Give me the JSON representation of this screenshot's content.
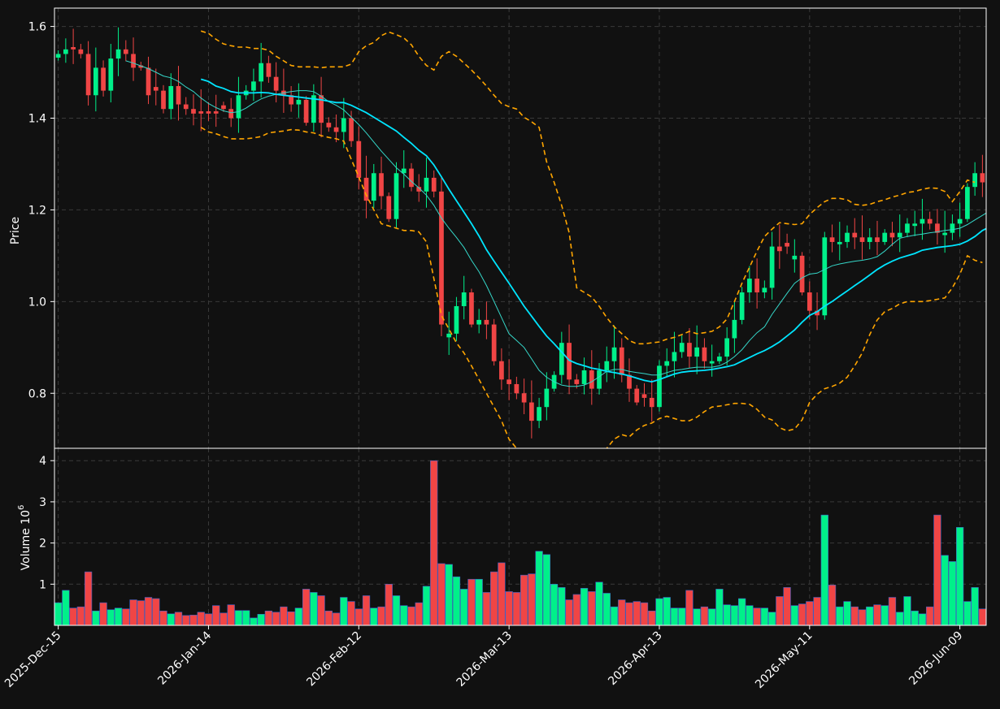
{
  "colors": {
    "background": "#111111",
    "up": "#00f08a",
    "down": "#f04545",
    "grid": "#3a3a3a",
    "axis": "#ffffff",
    "ma_slow": "#00e5ff",
    "ma_fast": "#35d6c8",
    "bands": "#ffa500"
  },
  "chart_data": {
    "type": "candlestick",
    "price_panel": {
      "ylabel": "Price",
      "ylim": [
        0.68,
        1.64
      ],
      "yticks": [
        0.8,
        1.0,
        1.2,
        1.4,
        1.6
      ],
      "ytick_labels": [
        "0.8",
        "1.0",
        "1.2",
        "1.4",
        "1.6"
      ],
      "grid": true
    },
    "volume_panel": {
      "ylabel": "Volume",
      "unit_label": "10",
      "unit_exponent": "6",
      "ylim": [
        0,
        4.3
      ],
      "yticks": [
        1,
        2,
        3,
        4
      ],
      "ytick_labels": [
        "1",
        "2",
        "3",
        "4"
      ],
      "grid": true
    },
    "x_tick_labels": [
      "2025-Dec-15",
      "2026-Jan-14",
      "2026-Feb-12",
      "2026-Mar-13",
      "2026-Apr-13",
      "2026-May-11",
      "2026-Jun-09"
    ],
    "x_tick_indices": [
      0,
      20,
      40,
      60,
      80,
      100,
      120
    ],
    "closes": [
      1.54,
      1.55,
      1.55,
      1.54,
      1.45,
      1.51,
      1.46,
      1.53,
      1.55,
      1.54,
      1.51,
      1.51,
      1.45,
      1.46,
      1.42,
      1.47,
      1.43,
      1.42,
      1.41,
      1.41,
      1.41,
      1.41,
      1.42,
      1.4,
      1.45,
      1.46,
      1.48,
      1.52,
      1.49,
      1.46,
      1.45,
      1.43,
      1.44,
      1.39,
      1.45,
      1.39,
      1.38,
      1.37,
      1.4,
      1.35,
      1.27,
      1.22,
      1.28,
      1.23,
      1.18,
      1.28,
      1.29,
      1.25,
      1.24,
      1.27,
      1.24,
      0.95,
      0.93,
      0.99,
      1.02,
      0.95,
      0.96,
      0.95,
      0.87,
      0.83,
      0.82,
      0.8,
      0.78,
      0.74,
      0.77,
      0.81,
      0.84,
      0.91,
      0.83,
      0.82,
      0.85,
      0.81,
      0.85,
      0.87,
      0.9,
      0.84,
      0.81,
      0.78,
      0.79,
      0.77,
      0.86,
      0.87,
      0.89,
      0.91,
      0.88,
      0.9,
      0.87,
      0.87,
      0.88,
      0.92,
      0.96,
      1.02,
      1.05,
      1.02,
      1.03,
      1.12,
      1.11,
      1.12,
      1.1,
      1.02,
      0.98,
      0.97,
      1.14,
      1.13,
      1.13,
      1.15,
      1.14,
      1.13,
      1.14,
      1.13,
      1.15,
      1.14,
      1.15,
      1.17,
      1.17,
      1.18,
      1.17,
      1.15,
      1.15,
      1.17,
      1.18,
      1.25,
      1.28,
      1.26
    ],
    "up_flags": [
      1,
      1,
      0,
      0,
      0,
      1,
      0,
      1,
      1,
      0,
      0,
      0,
      0,
      0,
      0,
      1,
      0,
      0,
      0,
      0,
      0,
      0,
      0,
      0,
      1,
      1,
      1,
      1,
      0,
      0,
      0,
      0,
      1,
      0,
      1,
      0,
      0,
      0,
      1,
      0,
      0,
      0,
      1,
      0,
      0,
      1,
      1,
      0,
      0,
      1,
      0,
      0,
      1,
      1,
      1,
      0,
      1,
      0,
      0,
      0,
      0,
      0,
      0,
      0,
      1,
      1,
      1,
      1,
      0,
      0,
      1,
      0,
      1,
      1,
      1,
      0,
      0,
      0,
      0,
      0,
      1,
      1,
      1,
      1,
      0,
      1,
      0,
      1,
      1,
      1,
      1,
      1,
      1,
      0,
      1,
      1,
      0,
      0,
      1,
      0,
      0,
      0,
      1,
      0,
      1,
      1,
      0,
      0,
      1,
      0,
      1,
      0,
      1,
      1,
      1,
      1,
      0,
      0,
      1,
      1,
      1,
      1,
      1,
      0
    ],
    "volumes": [
      0.55,
      0.85,
      0.42,
      0.45,
      1.3,
      0.35,
      0.55,
      0.38,
      0.42,
      0.4,
      0.62,
      0.6,
      0.68,
      0.65,
      0.35,
      0.28,
      0.32,
      0.24,
      0.25,
      0.32,
      0.28,
      0.48,
      0.3,
      0.5,
      0.36,
      0.36,
      0.18,
      0.27,
      0.35,
      0.32,
      0.45,
      0.33,
      0.42,
      0.88,
      0.8,
      0.72,
      0.35,
      0.3,
      0.68,
      0.58,
      0.4,
      0.72,
      0.42,
      0.45,
      1.0,
      0.72,
      0.48,
      0.45,
      0.55,
      0.95,
      4.0,
      1.5,
      1.48,
      1.18,
      0.88,
      1.12,
      1.12,
      0.8,
      1.3,
      1.52,
      0.82,
      0.8,
      1.22,
      1.25,
      1.8,
      1.72,
      1.0,
      0.92,
      0.62,
      0.75,
      0.9,
      0.82,
      1.05,
      0.78,
      0.45,
      0.62,
      0.55,
      0.58,
      0.55,
      0.35,
      0.65,
      0.68,
      0.42,
      0.42,
      0.85,
      0.4,
      0.45,
      0.4,
      0.88,
      0.5,
      0.48,
      0.65,
      0.48,
      0.42,
      0.42,
      0.32,
      0.7,
      0.92,
      0.48,
      0.52,
      0.58,
      0.68,
      2.68,
      0.98,
      0.45,
      0.58,
      0.45,
      0.38,
      0.45,
      0.5,
      0.48,
      0.68,
      0.32,
      0.7,
      0.35,
      0.28,
      0.45,
      2.68,
      1.7,
      1.55,
      2.38,
      0.58,
      0.92,
      0.4
    ],
    "ma_slow": [
      null,
      null,
      null,
      null,
      null,
      null,
      null,
      null,
      null,
      null,
      null,
      null,
      null,
      null,
      null,
      null,
      null,
      null,
      null,
      1.485,
      1.48,
      1.47,
      1.465,
      1.458,
      1.455,
      1.455,
      1.455,
      1.456,
      1.455,
      1.452,
      1.45,
      1.448,
      1.446,
      1.444,
      1.442,
      1.44,
      1.437,
      1.434,
      1.434,
      1.428,
      1.42,
      1.412,
      1.402,
      1.392,
      1.382,
      1.372,
      1.358,
      1.345,
      1.33,
      1.318,
      1.298,
      1.272,
      1.245,
      1.22,
      1.195,
      1.17,
      1.143,
      1.113,
      1.088,
      1.064,
      1.04,
      1.015,
      0.99,
      0.968,
      0.946,
      0.925,
      0.908,
      0.89,
      0.872,
      0.865,
      0.86,
      0.855,
      0.852,
      0.848,
      0.845,
      0.842,
      0.838,
      0.833,
      0.828,
      0.825,
      0.83,
      0.836,
      0.842,
      0.846,
      0.848,
      0.849,
      0.85,
      0.852,
      0.855,
      0.858,
      0.862,
      0.87,
      0.878,
      0.886,
      0.893,
      0.902,
      0.912,
      0.925,
      0.938,
      0.955,
      0.97,
      0.978,
      0.99,
      1.0,
      1.012,
      1.023,
      1.035,
      1.046,
      1.058,
      1.07,
      1.08,
      1.088,
      1.095,
      1.1,
      1.105,
      1.112,
      1.115,
      1.118,
      1.12,
      1.122,
      1.125,
      1.132,
      1.142,
      1.155,
      1.163,
      1.17
    ],
    "ma_fast": [
      null,
      null,
      null,
      null,
      null,
      null,
      null,
      null,
      null,
      1.525,
      1.52,
      1.514,
      1.508,
      1.5,
      1.492,
      1.488,
      1.48,
      1.468,
      1.458,
      1.444,
      1.432,
      1.423,
      1.416,
      1.412,
      1.414,
      1.422,
      1.433,
      1.442,
      1.448,
      1.452,
      1.455,
      1.458,
      1.46,
      1.46,
      1.458,
      1.448,
      1.436,
      1.428,
      1.418,
      1.402,
      1.386,
      1.368,
      1.348,
      1.328,
      1.31,
      1.292,
      1.278,
      1.262,
      1.248,
      1.232,
      1.21,
      1.182,
      1.16,
      1.14,
      1.118,
      1.09,
      1.065,
      1.035,
      1.0,
      0.965,
      0.93,
      0.915,
      0.9,
      0.875,
      0.85,
      0.835,
      0.825,
      0.818,
      0.815,
      0.815,
      0.818,
      0.825,
      0.836,
      0.848,
      0.852,
      0.852,
      0.848,
      0.845,
      0.843,
      0.84,
      0.84,
      0.845,
      0.85,
      0.852,
      0.855,
      0.857,
      0.857,
      0.857,
      0.86,
      0.868,
      0.88,
      0.895,
      0.915,
      0.932,
      0.945,
      0.972,
      0.995,
      1.018,
      1.04,
      1.052,
      1.06,
      1.062,
      1.07,
      1.078,
      1.082,
      1.085,
      1.088,
      1.09,
      1.093,
      1.098,
      1.11,
      1.125,
      1.138,
      1.142,
      1.145,
      1.147,
      1.15,
      1.152,
      1.155,
      1.157,
      1.16,
      1.168,
      1.178,
      1.188,
      1.198
    ],
    "upper_band": [
      null,
      null,
      null,
      null,
      null,
      null,
      null,
      null,
      null,
      null,
      null,
      null,
      null,
      null,
      null,
      null,
      null,
      null,
      null,
      1.59,
      1.585,
      1.572,
      1.562,
      1.558,
      1.555,
      1.555,
      1.552,
      1.552,
      1.548,
      1.535,
      1.525,
      1.515,
      1.512,
      1.512,
      1.512,
      1.51,
      1.512,
      1.512,
      1.512,
      1.518,
      1.545,
      1.558,
      1.565,
      1.58,
      1.588,
      1.582,
      1.575,
      1.56,
      1.535,
      1.515,
      1.505,
      1.535,
      1.545,
      1.535,
      1.52,
      1.505,
      1.488,
      1.47,
      1.45,
      1.432,
      1.425,
      1.42,
      1.402,
      1.392,
      1.38,
      1.305,
      1.26,
      1.21,
      1.15,
      1.03,
      1.02,
      1.01,
      0.99,
      0.965,
      0.945,
      0.93,
      0.915,
      0.908,
      0.908,
      0.91,
      0.912,
      0.918,
      0.922,
      0.928,
      0.935,
      0.93,
      0.932,
      0.935,
      0.945,
      0.962,
      1.0,
      1.04,
      1.075,
      1.11,
      1.142,
      1.158,
      1.172,
      1.17,
      1.168,
      1.17,
      1.19,
      1.205,
      1.218,
      1.225,
      1.225,
      1.222,
      1.212,
      1.21,
      1.212,
      1.218,
      1.222,
      1.228,
      1.232,
      1.238,
      1.24,
      1.245,
      1.248,
      1.247,
      1.24,
      1.218,
      1.24,
      1.265,
      1.26
    ],
    "lower_band": [
      null,
      null,
      null,
      null,
      null,
      null,
      null,
      null,
      null,
      null,
      null,
      null,
      null,
      null,
      null,
      null,
      null,
      null,
      null,
      1.38,
      1.37,
      1.366,
      1.36,
      1.355,
      1.355,
      1.355,
      1.357,
      1.36,
      1.368,
      1.37,
      1.372,
      1.375,
      1.374,
      1.37,
      1.368,
      1.362,
      1.358,
      1.355,
      1.35,
      1.31,
      1.272,
      1.232,
      1.2,
      1.17,
      1.165,
      1.16,
      1.155,
      1.155,
      1.152,
      1.13,
      1.05,
      0.97,
      0.94,
      0.91,
      0.888,
      0.86,
      0.83,
      0.8,
      0.77,
      0.74,
      0.7,
      0.68,
      0.66,
      0.64,
      0.62,
      0.6,
      0.58,
      0.56,
      0.54,
      0.52,
      0.5,
      0.55,
      0.62,
      0.68,
      0.7,
      0.71,
      0.705,
      0.72,
      0.73,
      0.735,
      0.745,
      0.75,
      0.745,
      0.74,
      0.74,
      0.748,
      0.76,
      0.77,
      0.772,
      0.775,
      0.778,
      0.778,
      0.776,
      0.765,
      0.748,
      0.742,
      0.725,
      0.718,
      0.722,
      0.742,
      0.78,
      0.798,
      0.81,
      0.815,
      0.822,
      0.835,
      0.86,
      0.888,
      0.928,
      0.96,
      0.978,
      0.985,
      0.995,
      1.0,
      1.0,
      1.0,
      1.002,
      1.005,
      1.008,
      1.03,
      1.06,
      1.1,
      1.09,
      1.085
    ]
  }
}
